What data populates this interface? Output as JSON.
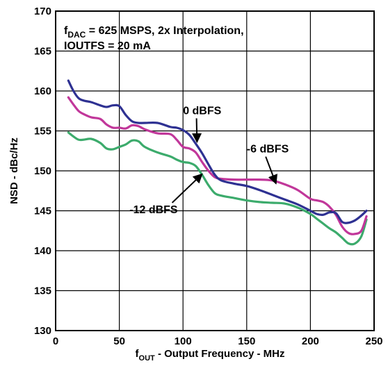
{
  "chart_data": {
    "type": "line",
    "title_line1_main": "f",
    "title_line1_sub": "DAC",
    "title_line1_rest": " = 625 MSPS, 2x Interpolation,",
    "title_line2": "IOUTFS = 20 mA",
    "xlabel_main": "f",
    "xlabel_sub": "OUT",
    "xlabel_rest": " - Output Frequency - MHz",
    "ylabel": "NSD - dBc/Hz",
    "xlim": [
      0,
      250
    ],
    "ylim": [
      130,
      170
    ],
    "xticks": [
      "0",
      "50",
      "100",
      "150",
      "200",
      "250"
    ],
    "yticks": [
      "130",
      "135",
      "140",
      "145",
      "150",
      "155",
      "160",
      "165",
      "170"
    ],
    "grid": true,
    "colors": {
      "s0": "#2e3192",
      "s6": "#c1379a",
      "s12": "#3cab6c"
    },
    "series": [
      {
        "name": "0 dBFS",
        "x": [
          10,
          14,
          18,
          22,
          28,
          35,
          40,
          45,
          50,
          55,
          60,
          65,
          70,
          80,
          90,
          95,
          100,
          105,
          110,
          115,
          120,
          125,
          130,
          140,
          150,
          160,
          170,
          180,
          190,
          200,
          205,
          210,
          215,
          220,
          225,
          230,
          235,
          240,
          244
        ],
        "y": [
          161.3,
          160.0,
          159.1,
          158.8,
          158.6,
          158.2,
          158.0,
          158.2,
          158.1,
          157.0,
          156.2,
          156.0,
          156.0,
          156.0,
          155.5,
          155.4,
          155.1,
          154.5,
          153.4,
          152.2,
          150.8,
          149.5,
          148.8,
          148.4,
          148.1,
          147.6,
          147.0,
          146.4,
          145.8,
          145.0,
          144.6,
          144.5,
          144.8,
          144.7,
          143.6,
          143.5,
          143.8,
          144.4,
          145.0
        ]
      },
      {
        "name": "-6 dBFS",
        "x": [
          10,
          14,
          18,
          22,
          28,
          35,
          40,
          45,
          50,
          55,
          60,
          65,
          70,
          80,
          90,
          95,
          100,
          105,
          110,
          115,
          120,
          125,
          130,
          140,
          150,
          160,
          170,
          180,
          190,
          200,
          205,
          210,
          215,
          220,
          225,
          230,
          235,
          240,
          244
        ],
        "y": [
          159.2,
          158.3,
          157.5,
          157.1,
          156.7,
          156.5,
          155.8,
          155.4,
          155.4,
          155.3,
          155.7,
          155.6,
          155.2,
          154.7,
          154.6,
          153.9,
          153.0,
          152.8,
          152.3,
          151.1,
          150.0,
          149.2,
          149.0,
          148.9,
          148.9,
          148.9,
          148.8,
          148.3,
          147.6,
          146.5,
          146.3,
          146.1,
          145.5,
          144.5,
          143.0,
          142.2,
          142.1,
          142.5,
          144.3
        ]
      },
      {
        "name": "-12 dBFS",
        "x": [
          10,
          14,
          18,
          22,
          28,
          35,
          40,
          45,
          50,
          55,
          60,
          65,
          70,
          80,
          90,
          95,
          100,
          105,
          110,
          115,
          120,
          125,
          130,
          140,
          150,
          160,
          170,
          180,
          190,
          200,
          205,
          210,
          215,
          220,
          225,
          230,
          235,
          240,
          244
        ],
        "y": [
          154.8,
          154.3,
          153.9,
          153.9,
          154.0,
          153.5,
          152.8,
          152.7,
          153.0,
          153.3,
          153.8,
          153.7,
          153.0,
          152.3,
          151.8,
          151.4,
          151.1,
          151.0,
          150.6,
          149.5,
          148.2,
          147.2,
          146.9,
          146.6,
          146.3,
          146.1,
          146.0,
          145.9,
          145.4,
          144.6,
          144.0,
          143.4,
          142.8,
          142.3,
          141.6,
          140.9,
          140.9,
          141.8,
          143.9
        ]
      }
    ],
    "annotations": [
      {
        "label": "0 dBFS",
        "text_x": 100,
        "text_y": 157.1,
        "arrow_to": [
          111,
          153.6
        ]
      },
      {
        "label": "-6 dBFS",
        "text_x": 150,
        "text_y": 152.3,
        "arrow_to": [
          173,
          148.4
        ]
      },
      {
        "label": "-12 dBFS",
        "text_x": 58,
        "text_y": 144.7,
        "arrow_to": [
          115,
          149.6
        ]
      }
    ]
  }
}
